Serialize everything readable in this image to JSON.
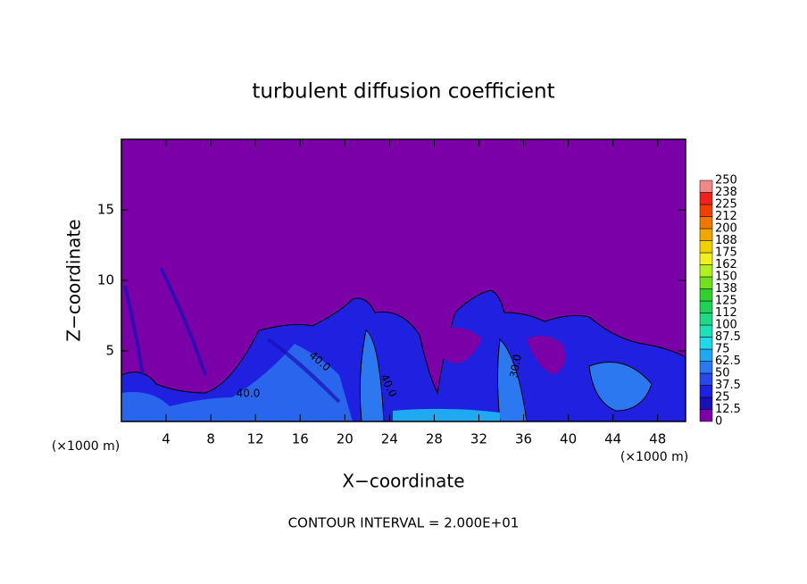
{
  "chart_data": {
    "type": "contour",
    "title": "turbulent diffusion coefficient",
    "xlabel": "X−coordinate",
    "ylabel": "Z−coordinate",
    "x_unit_left": "(×1000 m)",
    "x_unit_right": "(×1000 m)",
    "footnote": "CONTOUR INTERVAL = 2.000E+01",
    "xlim": [
      0,
      50.5
    ],
    "ylim": [
      0,
      20
    ],
    "xticks": [
      4,
      8,
      12,
      16,
      20,
      24,
      28,
      32,
      36,
      40,
      44,
      48
    ],
    "yticks": [
      5,
      10,
      15
    ],
    "contour_labels": [
      "40.0",
      "40.0",
      "40.0",
      "30.0"
    ],
    "colorbar": {
      "levels": [
        0,
        12.5,
        25,
        37.5,
        50,
        62.5,
        75,
        87.5,
        100,
        112,
        125,
        138,
        150,
        162,
        175,
        188,
        200,
        212,
        225,
        238,
        250
      ],
      "colors": [
        "#7c00a8",
        "#1a10b8",
        "#2020e0",
        "#2848e8",
        "#2c78f0",
        "#20a8f0",
        "#20d8e8",
        "#20e0b8",
        "#20d888",
        "#20d058",
        "#30d030",
        "#70e020",
        "#b0f020",
        "#f0f020",
        "#f0d000",
        "#f0a800",
        "#f07800",
        "#f04000",
        "#f02020",
        "#f08888"
      ]
    }
  }
}
